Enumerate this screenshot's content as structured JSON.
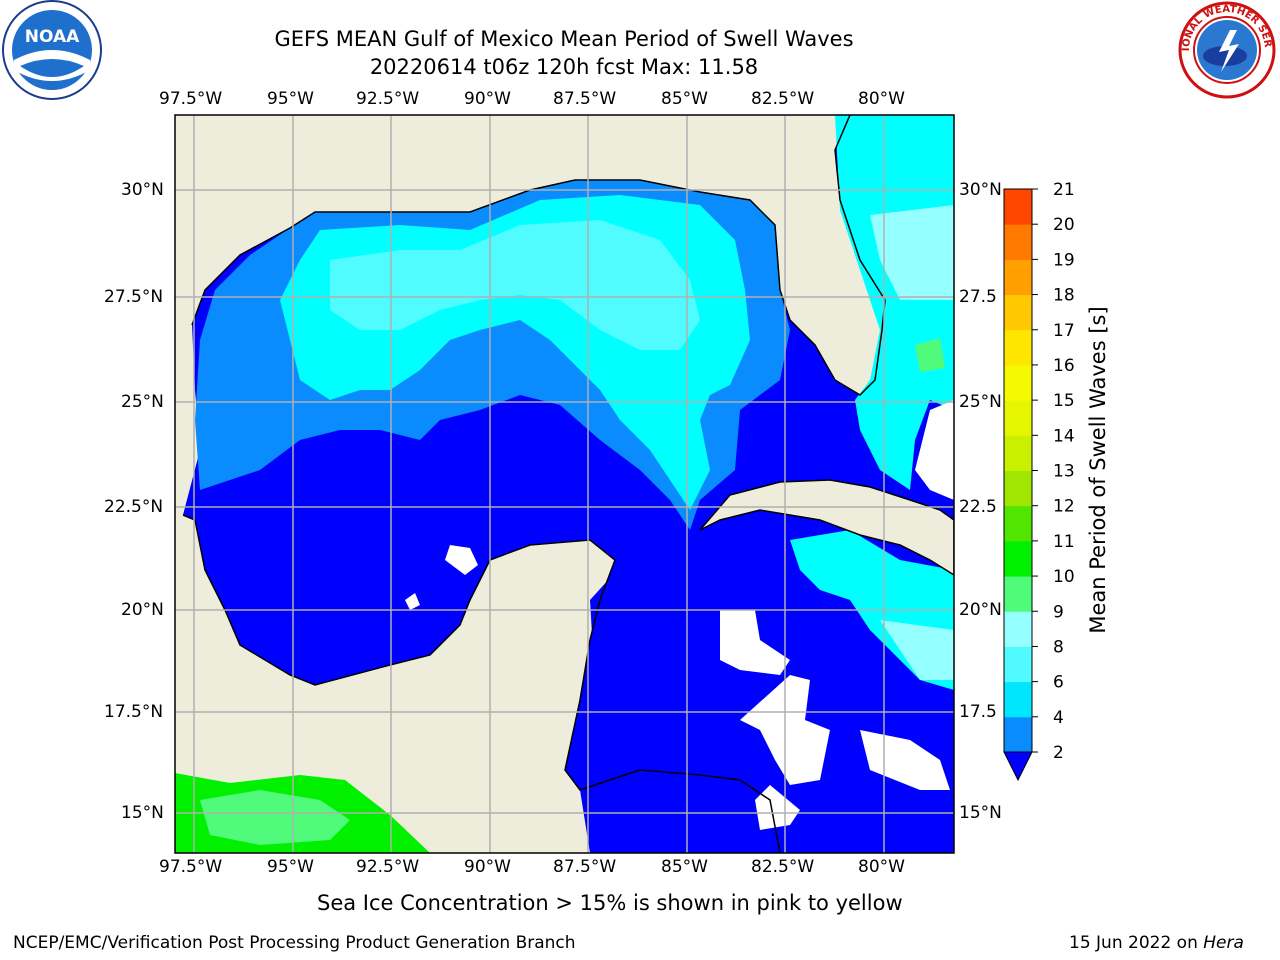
{
  "title": {
    "line1": "GEFS MEAN Gulf of Mexico Mean Period of Swell Waves",
    "line2": "20220614 t06z 120h fcst   Max: 11.58"
  },
  "axes": {
    "lon_labels": [
      "97.5°W",
      "95°W",
      "92.5°W",
      "90°W",
      "87.5°W",
      "85°W",
      "82.5°W",
      "80°W"
    ],
    "lat_labels_left": [
      "30°N",
      "27.5°N",
      "25°N",
      "22.5°N",
      "20°N",
      "17.5°N",
      "15°N"
    ],
    "lat_labels_right": [
      "30°N",
      "27.5",
      "25°N",
      "22.5",
      "20°N",
      "17.5",
      "15°N"
    ]
  },
  "colorbar": {
    "label": "Mean Period of Swell Waves [s]",
    "levels": [
      "2",
      "4",
      "6",
      "8",
      "9",
      "10",
      "11",
      "12",
      "13",
      "14",
      "15",
      "16",
      "17",
      "18",
      "19",
      "20",
      "21"
    ],
    "colors": [
      "#0a8cff",
      "#00e6ff",
      "#50faff",
      "#96ffff",
      "#50fa7a",
      "#00f000",
      "#50e600",
      "#a0e600",
      "#c8f000",
      "#e6f500",
      "#f5fa00",
      "#ffe600",
      "#ffc800",
      "#ffa000",
      "#ff7800",
      "#ff4600",
      "#ff1400"
    ],
    "under_color": "#0000ff"
  },
  "colors": {
    "land": "#eeeddc",
    "deep_blue": "#0000ff",
    "mid_blue": "#0a8cff",
    "cyan": "#00ffff",
    "light_cyan": "#50fcff",
    "pale_cyan": "#96ffff",
    "green": "#00f000",
    "light_green": "#50fa7a",
    "grid": "#b0b0b0"
  },
  "notes": {
    "sea_ice": "Sea Ice Concentration > 15% is shown in pink to yellow",
    "credit": "NCEP/EMC/Verification Post Processing Product Generation Branch",
    "date_text": "15 Jun 2022 on ",
    "host": "Hera"
  },
  "logos": {
    "noaa_text": "NOAA",
    "nws_text": "NATIONAL WEATHER SERVICE"
  }
}
